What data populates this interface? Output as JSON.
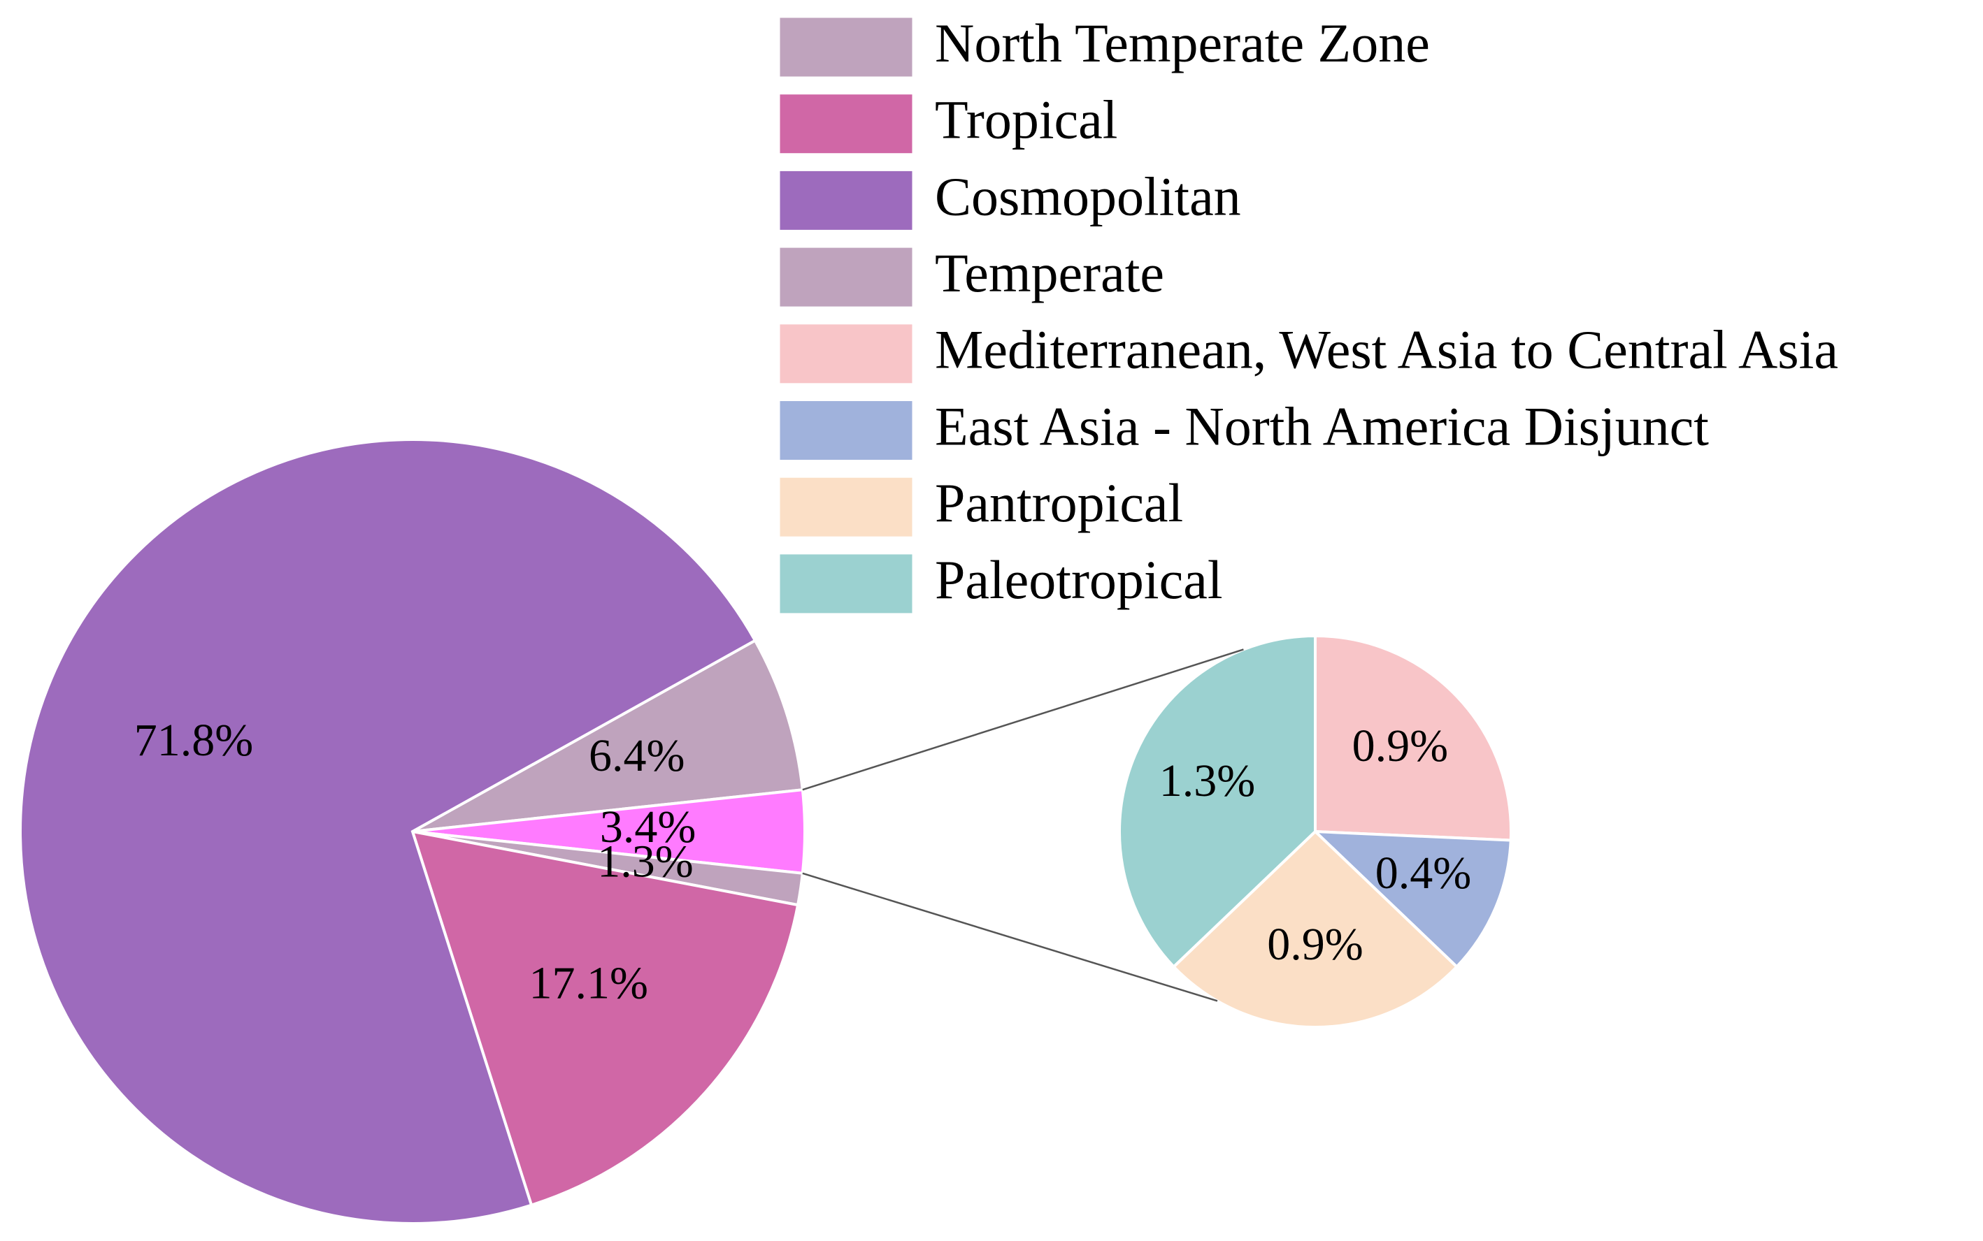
{
  "chart_data": {
    "type": "pie-of-pie",
    "legend": [
      {
        "name": "North Temperate Zone",
        "color": "#bfa3bd"
      },
      {
        "name": "Tropical",
        "color": "#d067a6"
      },
      {
        "name": "Cosmopolitan",
        "color": "#9d6bbd"
      },
      {
        "name": "Temperate",
        "color": "#bfa3bd"
      },
      {
        "name": "Mediterranean, West Asia to Central Asia",
        "color": "#f8c5c8"
      },
      {
        "name": "East Asia - North America Disjunct",
        "color": "#a0b2dc"
      },
      {
        "name": "Pantropical",
        "color": "#fbdfc6"
      },
      {
        "name": "Paleotropical",
        "color": "#9bd1d0"
      }
    ],
    "main": {
      "values": [
        6.4,
        3.4,
        1.3,
        17.1,
        71.8
      ],
      "value_labels": [
        "6.4%",
        "3.4%",
        "1.3%",
        "17.1%",
        "71.8%"
      ],
      "colors": [
        "#bfa3bd",
        "#ff7bff",
        "#bfa3bd",
        "#d067a6",
        "#9d6bbd"
      ]
    },
    "sub": {
      "values": [
        0.9,
        0.4,
        0.9,
        1.3
      ],
      "value_labels": [
        "0.9%",
        "0.4%",
        "0.9%",
        "1.3%"
      ],
      "colors": [
        "#f8c5c8",
        "#a0b2dc",
        "#fbdfc6",
        "#9bd1d0"
      ]
    }
  }
}
